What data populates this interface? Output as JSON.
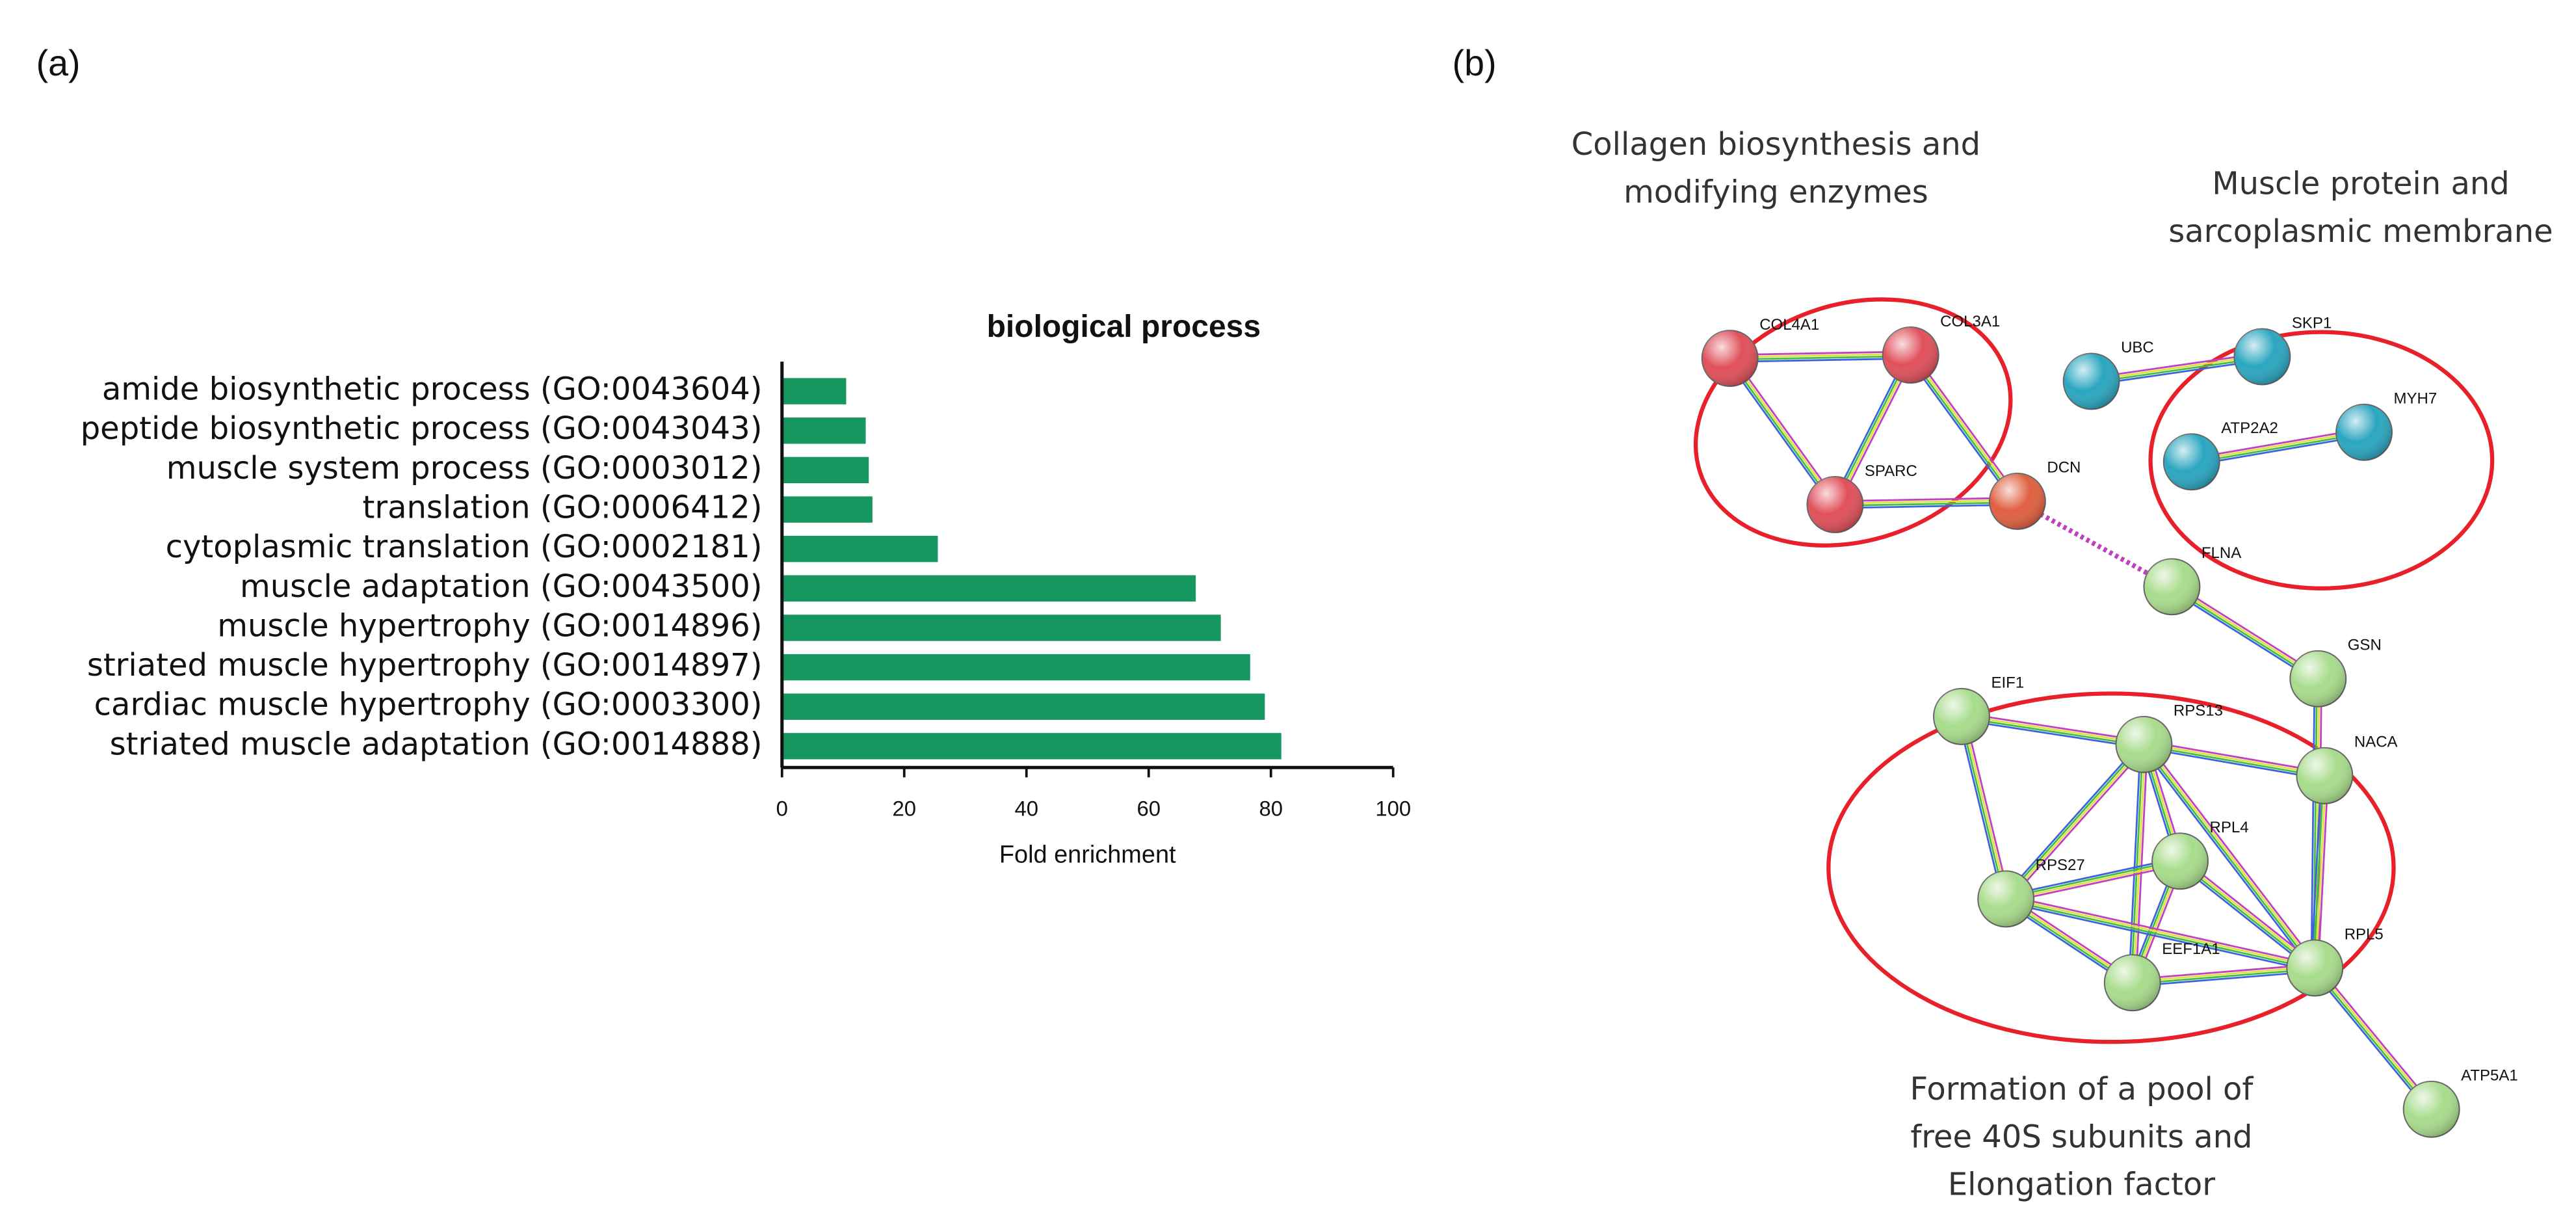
{
  "chart_data": {
    "type": "barh",
    "title": "biological process",
    "xlabel": "Fold enrichment",
    "categories": [
      "amide biosynthetic process (GO:0043604)",
      "peptide biosynthetic process (GO:0043043)",
      "muscle system process (GO:0003012)",
      "translation (GO:0006412)",
      "cytoplasmic translation (GO:0002181)",
      "muscle adaptation (GO:0043500)",
      "muscle hypertrophy (GO:0014896)",
      "striated muscle hypertrophy (GO:0014897)",
      "cardiac muscle hypertrophy (GO:0003300)",
      "striated muscle adaptation (GO:0014888)"
    ],
    "values": [
      10.5,
      13.7,
      14.2,
      14.8,
      25.5,
      67.7,
      71.8,
      76.6,
      79,
      81.7
    ],
    "color": "#15975f",
    "xlim": [
      0,
      100
    ],
    "xticks": [
      0,
      20,
      40,
      60,
      80,
      100
    ]
  },
  "panels": [
    "(a)",
    "(b)"
  ],
  "network": {
    "clusters": [
      {
        "lines": [
          "Collagen biosynthesis and",
          "modifying enzymes"
        ]
      },
      {
        "lines": [
          "Muscle protein and",
          "sarcoplasmic membrane"
        ]
      },
      {
        "lines": [
          "Formation of a pool of",
          "free 40S subunits and",
          "Elongation factor"
        ]
      }
    ],
    "nodes": [
      {
        "label": "COL4A1",
        "color": "#e0505a"
      },
      {
        "label": "COL3A1",
        "color": "#e0505a"
      },
      {
        "label": "SPARC",
        "color": "#e0505a"
      },
      {
        "label": "DCN",
        "color": "#e06040"
      },
      {
        "label": "UBC",
        "color": "#2aa6c0"
      },
      {
        "label": "SKP1",
        "color": "#2aa6c0"
      },
      {
        "label": "ATP2A2",
        "color": "#2aa6c0"
      },
      {
        "label": "MYH7",
        "color": "#2aa6c0"
      },
      {
        "label": "FLNA",
        "color": "#a8dc8c"
      },
      {
        "label": "GSN",
        "color": "#a8dc8c"
      },
      {
        "label": "EIF1",
        "color": "#a8dc8c"
      },
      {
        "label": "RPS13",
        "color": "#a8dc8c"
      },
      {
        "label": "NACA",
        "color": "#a8dc8c"
      },
      {
        "label": "RPL4",
        "color": "#a8dc8c"
      },
      {
        "label": "RPS27",
        "color": "#a8dc8c"
      },
      {
        "label": "EEF1A1",
        "color": "#a8dc8c"
      },
      {
        "label": "RPL5",
        "color": "#a8dc8c"
      },
      {
        "label": "ATP5A1",
        "color": "#a8dc8c"
      }
    ]
  }
}
